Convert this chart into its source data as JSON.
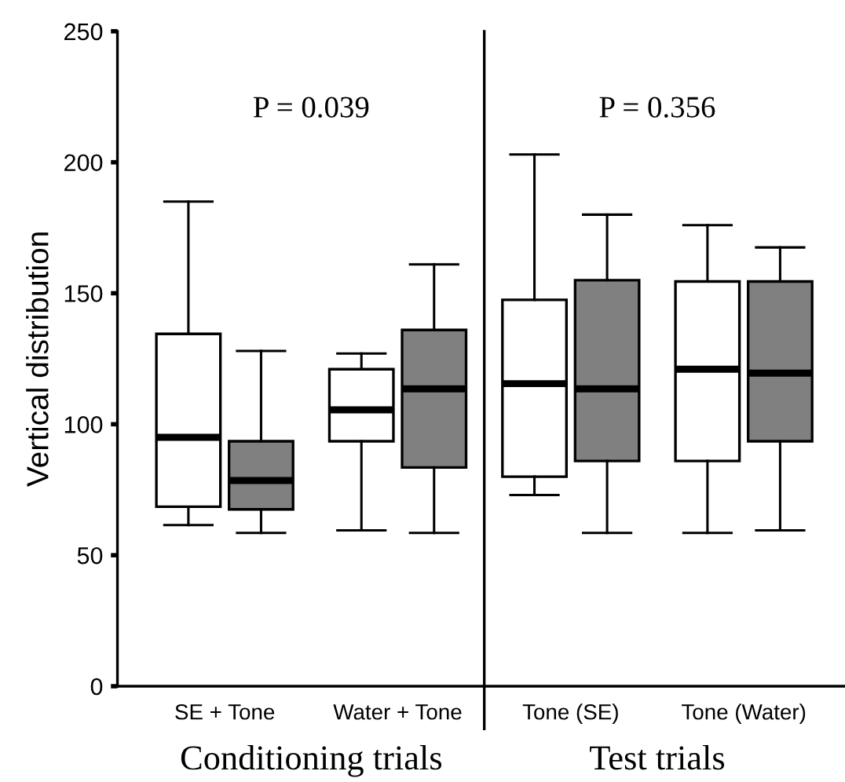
{
  "chart_data": {
    "type": "box",
    "ylabel": "Vertical distribution",
    "categories": [
      "SE + Tone",
      "Water + Tone",
      "Tone (SE)",
      "Tone (Water)"
    ],
    "series": [
      {
        "color": "#ffffff",
        "boxes": [
          {
            "low": 61.5,
            "q1": 68.5,
            "median": 95,
            "q3": 134.5,
            "high": 185
          },
          {
            "low": 59.5,
            "q1": 93.5,
            "median": 105.5,
            "q3": 121,
            "high": 127
          },
          {
            "low": 73,
            "q1": 80,
            "median": 115.5,
            "q3": 147.5,
            "high": 203
          },
          {
            "low": 58.5,
            "q1": 86,
            "median": 121,
            "q3": 154.5,
            "high": 176
          }
        ]
      },
      {
        "color": "#808080",
        "boxes": [
          {
            "low": 58.5,
            "q1": 67.5,
            "median": 78.5,
            "q3": 93.5,
            "high": 128
          },
          {
            "low": 58.5,
            "q1": 83.5,
            "median": 113.5,
            "q3": 136,
            "high": 161
          },
          {
            "low": 58.5,
            "q1": 86,
            "median": 113.5,
            "q3": 155,
            "high": 180
          },
          {
            "low": 59.5,
            "q1": 93.5,
            "median": 119.5,
            "q3": 154.5,
            "high": 167.5
          }
        ]
      }
    ],
    "ylim": [
      0,
      250
    ],
    "yticks": [
      0,
      50,
      100,
      150,
      200,
      250
    ],
    "grid": false,
    "legend": false,
    "annotations": [
      "P = 0.039",
      "P = 0.356",
      "Conditioning trials",
      "Test trials"
    ]
  }
}
